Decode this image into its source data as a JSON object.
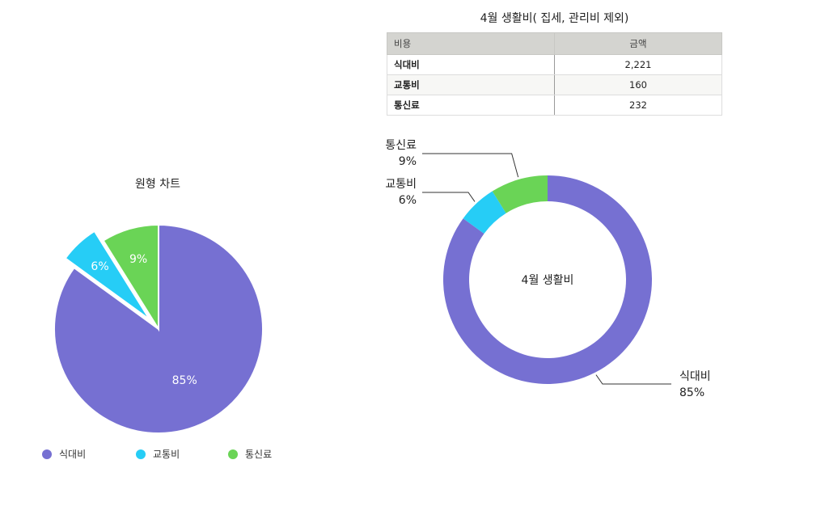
{
  "header": {
    "title": "4월 생활비( 집세, 관리비 제외)"
  },
  "table": {
    "columns": [
      "비용",
      "금액"
    ],
    "rows": [
      {
        "label": "식대비",
        "amount": "2,221"
      },
      {
        "label": "교통비",
        "amount": "160"
      },
      {
        "label": "통신료",
        "amount": "232"
      }
    ]
  },
  "colors": {
    "식대비": "#7670d2",
    "교통비": "#26cdf6",
    "통신료": "#6ad456"
  },
  "chart_data": [
    {
      "type": "pie",
      "title": "원형 차트",
      "categories": [
        "식대비",
        "교통비",
        "통신료"
      ],
      "values": [
        2221,
        160,
        232
      ],
      "percent_labels": [
        "85%",
        "6%",
        "9%"
      ],
      "exploded": "교통비",
      "legend": {
        "position": "bottom",
        "entries": [
          "식대비",
          "교통비",
          "통신료"
        ]
      }
    },
    {
      "type": "pie",
      "variant": "donut",
      "center_label": "4월 생활비",
      "categories": [
        "식대비",
        "교통비",
        "통신료"
      ],
      "values": [
        2221,
        160,
        232
      ],
      "callouts": [
        {
          "name": "식대비",
          "percent": "85%"
        },
        {
          "name": "교통비",
          "percent": "6%"
        },
        {
          "name": "통신료",
          "percent": "9%"
        }
      ]
    }
  ]
}
